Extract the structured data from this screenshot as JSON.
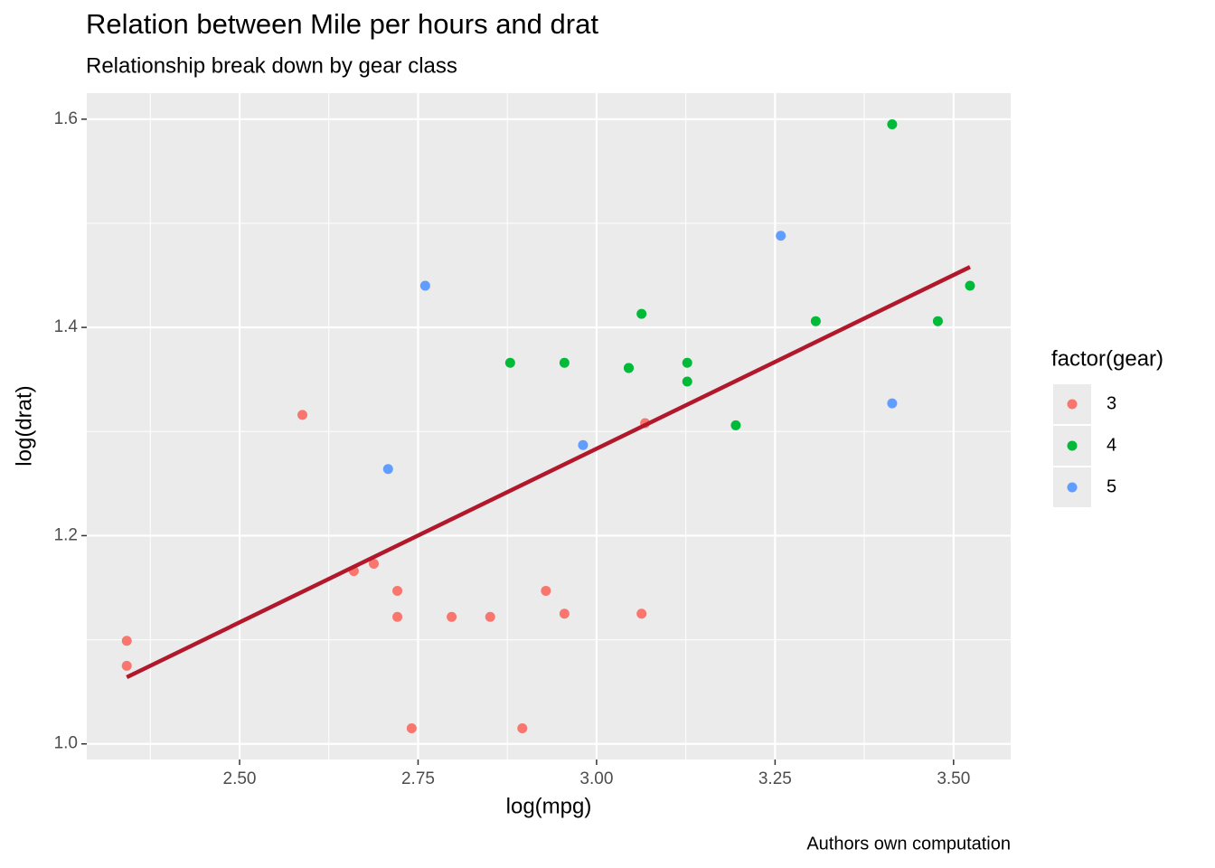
{
  "chart_data": {
    "type": "scatter",
    "title": "Relation between Mile per hours and drat",
    "subtitle": "Relationship break down by gear class",
    "caption": "Authors own computation",
    "x_label": "log(mpg)",
    "y_label": "log(drat)",
    "legend_title": "factor(gear)",
    "legend_position": "right",
    "grid": true,
    "xlim": [
      2.286,
      3.58
    ],
    "ylim": [
      0.985,
      1.625
    ],
    "xticks": [
      {
        "value": 2.5,
        "label": "2.50"
      },
      {
        "value": 2.75,
        "label": "2.75"
      },
      {
        "value": 3.0,
        "label": "3.00"
      },
      {
        "value": 3.25,
        "label": "3.25"
      },
      {
        "value": 3.5,
        "label": "3.50"
      }
    ],
    "yticks": [
      {
        "value": 1.0,
        "label": "1.0"
      },
      {
        "value": 1.2,
        "label": "1.2"
      },
      {
        "value": 1.4,
        "label": "1.4"
      },
      {
        "value": 1.6,
        "label": "1.6"
      }
    ],
    "x_minor_grid": [
      2.375,
      2.625,
      2.875,
      3.125,
      3.375
    ],
    "y_minor_grid": [
      1.1,
      1.3,
      1.5
    ],
    "series": [
      {
        "name": "3",
        "color": "#F8766D",
        "x": [
          3.063,
          2.929,
          2.896,
          2.66,
          2.797,
          2.851,
          2.721,
          2.342,
          2.342,
          2.688,
          3.068,
          2.741,
          2.721,
          2.588,
          2.955
        ],
        "values": [
          1.125,
          1.147,
          1.015,
          1.166,
          1.122,
          1.122,
          1.122,
          1.075,
          1.099,
          1.173,
          1.308,
          1.015,
          1.147,
          1.316,
          1.125
        ]
      },
      {
        "name": "4",
        "color": "#00BA38",
        "x": [
          3.045,
          3.045,
          3.127,
          3.195,
          3.127,
          2.955,
          2.879,
          3.478,
          3.414,
          3.523,
          3.307,
          3.063
        ],
        "values": [
          1.361,
          1.361,
          1.348,
          1.306,
          1.366,
          1.366,
          1.366,
          1.406,
          1.595,
          1.44,
          1.406,
          1.413
        ]
      },
      {
        "name": "5",
        "color": "#619CFF",
        "x": [
          3.258,
          3.414,
          2.76,
          2.981,
          2.708
        ],
        "values": [
          1.488,
          1.327,
          1.44,
          1.287,
          1.264
        ]
      }
    ],
    "fit_line": {
      "color": "#B2182B",
      "x": [
        2.342,
        3.523
      ],
      "values": [
        1.064,
        1.458
      ]
    }
  }
}
